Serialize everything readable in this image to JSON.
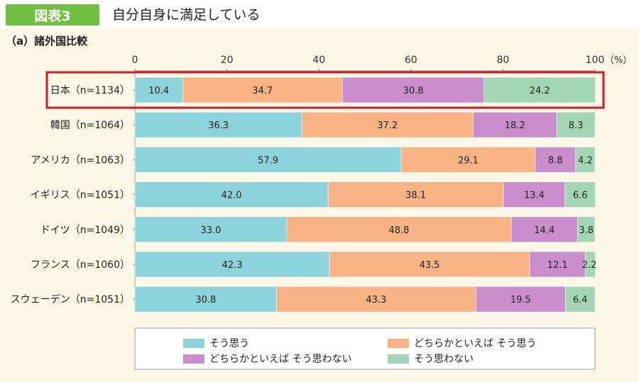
{
  "header": {
    "tag": "図表3",
    "title": "自分自身に満足している"
  },
  "chart_data": {
    "type": "bar",
    "orientation": "horizontal",
    "stacked": true,
    "subtitle": "（a）諸外国比較",
    "unit_label": "（%）",
    "xlim": [
      0,
      100
    ],
    "ticks": [
      0,
      20,
      40,
      60,
      80,
      100
    ],
    "categories": [
      "日本（n=1134）",
      "韓国（n=1064）",
      "アメリカ（n=1063）",
      "イギリス（n=1051）",
      "ドイツ（n=1049）",
      "フランス（n=1060）",
      "スウェーデン（n=1051）"
    ],
    "highlight_category_index": 0,
    "series": [
      {
        "name": "そう思う",
        "color": "#8dd3dc",
        "values": [
          10.4,
          36.3,
          57.9,
          42.0,
          33.0,
          42.3,
          30.8
        ]
      },
      {
        "name": "どちらかといえば そう思う",
        "color": "#f8b384",
        "values": [
          34.7,
          37.2,
          29.1,
          38.1,
          48.8,
          43.5,
          43.3
        ]
      },
      {
        "name": "どちらかといえば そう思わない",
        "color": "#c98ecb",
        "values": [
          30.8,
          18.2,
          8.8,
          13.4,
          14.4,
          12.1,
          19.5
        ]
      },
      {
        "name": "そう思わない",
        "color": "#a3d6b4",
        "values": [
          24.2,
          8.3,
          4.2,
          6.6,
          3.8,
          2.2,
          6.4
        ]
      }
    ],
    "value_labels": [
      [
        "10.4",
        "34.7",
        "30.8",
        "24.2"
      ],
      [
        "36.3",
        "37.2",
        "18.2",
        "8.3"
      ],
      [
        "57.9",
        "29.1",
        "8.8",
        "4.2"
      ],
      [
        "42.0",
        "38.1",
        "13.4",
        "6.6"
      ],
      [
        "33.0",
        "48.8",
        "14.4",
        "3.8"
      ],
      [
        "42.3",
        "43.5",
        "12.1",
        "2.2"
      ],
      [
        "30.8",
        "43.3",
        "19.5",
        "6.4"
      ]
    ],
    "highlight_color": "#c8202a",
    "legend_position": "bottom"
  }
}
